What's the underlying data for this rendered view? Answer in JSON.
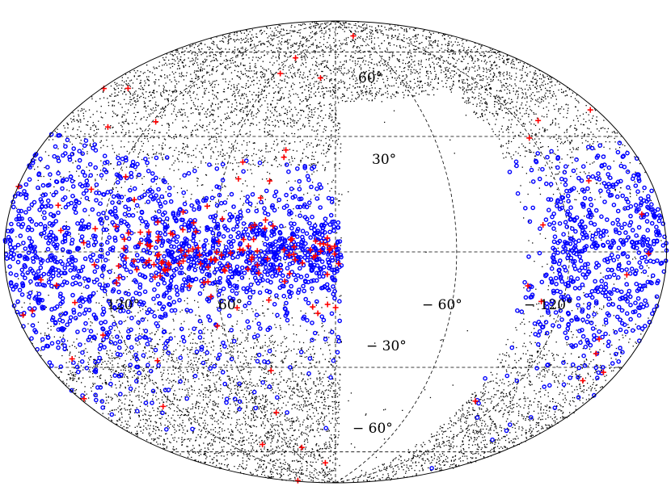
{
  "map": {
    "projection": "hammer-aitoff",
    "center_longitude_deg": 0,
    "longitude_direction": "increasing-left",
    "graticule": {
      "latitudes": [
        -60,
        -30,
        0,
        30,
        60
      ],
      "longitudes": [
        -120,
        -60,
        0,
        60,
        120
      ],
      "style": "dashed",
      "outline_style": "solid"
    },
    "labels": {
      "lat_p60": "60°",
      "lat_p30": "30°",
      "lat_m30": "− 30°",
      "lat_m60": "− 60°",
      "lon_p120": "120°",
      "lon_p60": "60°",
      "lon_m60": "− 60°",
      "lon_m120": "− 120°"
    },
    "layers": [
      {
        "name": "background-points",
        "marker": "dot",
        "color": "#000000",
        "approx_count": 9000
      },
      {
        "name": "blue-sources",
        "marker": "open-circle",
        "color": "#0000ff",
        "approx_count": 2300
      },
      {
        "name": "red-sources",
        "marker": "plus",
        "color": "#ff0000",
        "approx_count": 170
      }
    ],
    "empty_region": {
      "description": "unsampled zone, no markers",
      "lon_range_deg": [
        -95,
        0
      ],
      "lat_range_deg": [
        -90,
        80
      ]
    }
  }
}
